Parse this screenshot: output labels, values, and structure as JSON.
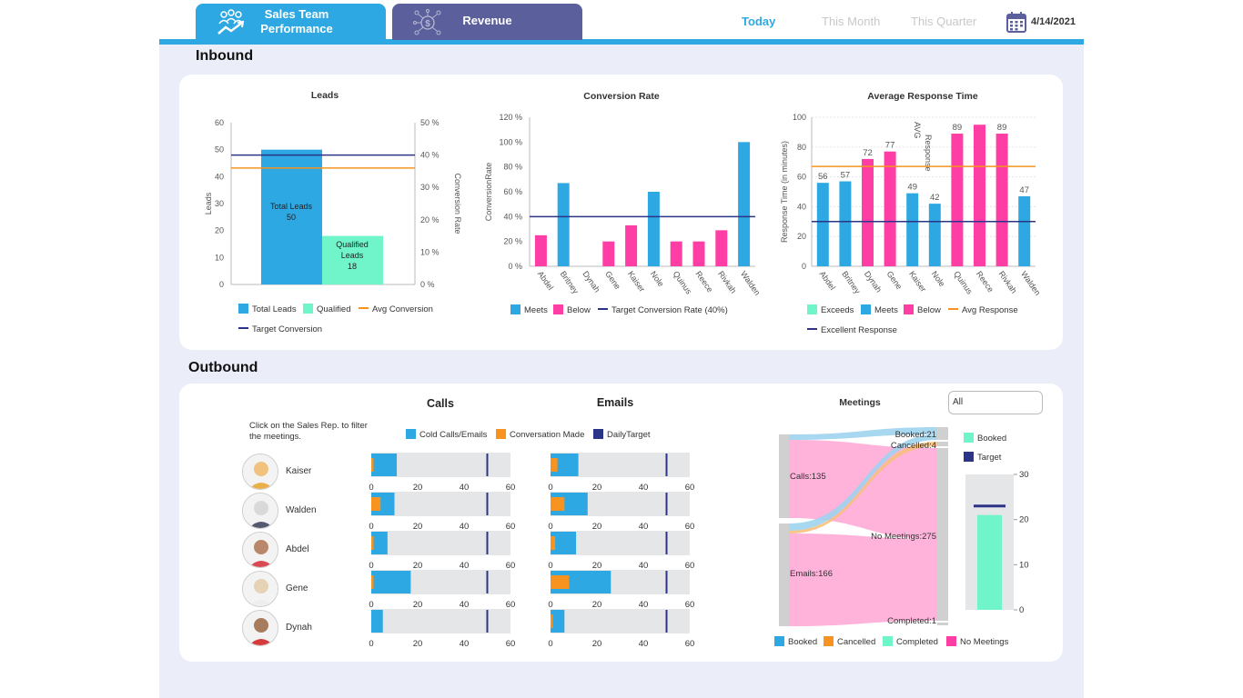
{
  "header": {
    "tabs": [
      {
        "label_line1": "Sales Team",
        "label_line2": "Performance",
        "icon": "team-growth-icon",
        "active": true
      },
      {
        "label": "Revenue",
        "icon": "dollar-network-icon",
        "active": false
      }
    ],
    "periods": [
      "Today",
      "This Month",
      "This Quarter"
    ],
    "active_period": "Today",
    "date": "4/14/2021",
    "accent": "#2ea8e2"
  },
  "inbound": {
    "title": "Inbound",
    "leads_chart": {
      "title": "Leads",
      "ylabel": "Leads",
      "y2label": "Conversion Rate",
      "y_ticks": [
        "0",
        "10",
        "20",
        "30",
        "40",
        "50",
        "60"
      ],
      "y2_ticks": [
        "0 %",
        "10 %",
        "20 %",
        "30 %",
        "40 %",
        "50 %"
      ],
      "bars": [
        {
          "label_line1": "Total Leads",
          "label_line2": "50",
          "value": 50,
          "color": "#2ea8e2"
        },
        {
          "label_line1": "Qualified",
          "label_line2": "Leads",
          "label_line3": "18",
          "value": 18,
          "color": "#6ff5c9"
        }
      ],
      "avg_conversion": 36,
      "target_conversion": 40,
      "legend": [
        "Total Leads",
        "Qualified",
        "Avg Conversion",
        "Target Conversion"
      ]
    },
    "conversion_chart": {
      "title": "Conversion Rate",
      "ylabel": "ConversionRate",
      "y_ticks": [
        "0 %",
        "20 %",
        "40 %",
        "60 %",
        "80 %",
        "100 %",
        "120 %"
      ],
      "categories": [
        "Abdel",
        "Britney",
        "Dynah",
        "Gene",
        "Kaiser",
        "Nole",
        "Quinus",
        "Reece",
        "Rivkah",
        "Walden"
      ],
      "values": [
        25,
        67,
        0,
        20,
        33,
        60,
        20,
        20,
        29,
        100
      ],
      "status": [
        "below",
        "meets",
        "below",
        "below",
        "below",
        "meets",
        "below",
        "below",
        "below",
        "meets"
      ],
      "target": 40,
      "legend": [
        "Meets",
        "Below",
        "Target Conversion Rate (40%)"
      ]
    },
    "response_chart": {
      "title": "Average Response Time",
      "ylabel": "Response Time (in minutes)",
      "annotation": "AVG Response",
      "y_ticks": [
        "0",
        "20",
        "40",
        "60",
        "80",
        "100"
      ],
      "categories": [
        "Abdel",
        "Britney",
        "Dynah",
        "Gene",
        "Kaiser",
        "Nole",
        "Quinus",
        "Reece",
        "Rivkah",
        "Walden"
      ],
      "values": [
        56,
        57,
        72,
        77,
        49,
        42,
        89,
        95,
        89,
        47
      ],
      "value_labels": [
        "56",
        "57",
        "72",
        "77",
        "49",
        "42",
        "89",
        "",
        "89",
        "47"
      ],
      "status": [
        "meets",
        "meets",
        "below",
        "below",
        "meets",
        "meets",
        "below",
        "below",
        "below",
        "meets"
      ],
      "avg_response": 67,
      "excellent_response": 30,
      "legend": [
        "Exceeds",
        "Meets",
        "Below",
        "Avg Response",
        "Excellent Response"
      ]
    }
  },
  "outbound": {
    "title": "Outbound",
    "hint": "Click on the Sales Rep. to filter the meetings.",
    "calls_title": "Calls",
    "emails_title": "Emails",
    "legend": [
      "Cold Calls/Emails",
      "Conversation Made",
      "DailyTarget"
    ],
    "axis_ticks": [
      "0",
      "20",
      "40",
      "60"
    ],
    "daily_target": 50,
    "reps": [
      {
        "name": "Kaiser",
        "calls": 11,
        "call_conv": 1,
        "emails": 12,
        "email_conv": 3
      },
      {
        "name": "Walden",
        "calls": 10,
        "call_conv": 4,
        "emails": 16,
        "email_conv": 6
      },
      {
        "name": "Abdel",
        "calls": 7,
        "call_conv": 1,
        "emails": 11,
        "email_conv": 2
      },
      {
        "name": "Gene",
        "calls": 17,
        "call_conv": 1,
        "emails": 26,
        "email_conv": 8
      },
      {
        "name": "Dynah",
        "calls": 5,
        "call_conv": 0,
        "emails": 6,
        "email_conv": 1
      }
    ],
    "meetings": {
      "title": "Meetings",
      "filter_value": "All",
      "sources": [
        "Calls:135",
        "Emails:166"
      ],
      "targets": [
        "Booked:21",
        "Cancelled:4",
        "No Meetings:275",
        "Completed:1"
      ],
      "legend": [
        "Booked",
        "Cancelled",
        "Completed",
        "No Meetings"
      ],
      "gauge_legend": [
        "Booked",
        "Target"
      ],
      "gauge_ticks": [
        "0",
        "10",
        "20",
        "30"
      ],
      "booked": 21,
      "target": 23
    }
  }
}
